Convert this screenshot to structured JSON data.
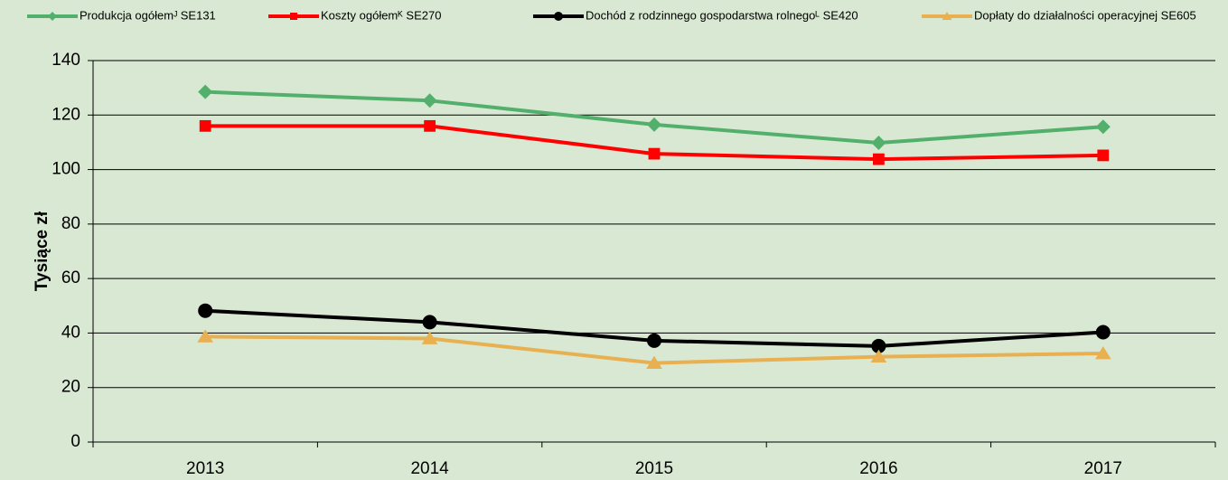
{
  "chart_data": {
    "type": "line",
    "y_label": "Tysiące zł",
    "categories": [
      "2013",
      "2014",
      "2015",
      "2016",
      "2017"
    ],
    "series": [
      {
        "name": "Produkcja ogółemᴶ SE131",
        "color": "#52b06c",
        "marker": "diamond",
        "values": [
          128.5,
          125.3,
          116.5,
          109.8,
          115.7
        ]
      },
      {
        "name": "Koszty ogółemᴷ SE270",
        "color": "#ff0000",
        "marker": "square",
        "values": [
          116,
          116,
          105.8,
          103.8,
          105.2
        ]
      },
      {
        "name": "Dochód z rodzinnego gospodarstwa rolnegoᴸ SE420",
        "color": "#000000",
        "marker": "circle",
        "values": [
          48.2,
          44,
          37.2,
          35.2,
          40.3
        ]
      },
      {
        "name": "Dopłaty do działalności operacyjnej SE605",
        "color": "#e8b050",
        "marker": "triangle",
        "values": [
          38.7,
          38,
          29,
          31.3,
          32.5
        ]
      }
    ],
    "ylim": [
      0,
      140
    ],
    "yticks": [
      0,
      20,
      40,
      60,
      80,
      100,
      120,
      140
    ],
    "grid": true
  }
}
